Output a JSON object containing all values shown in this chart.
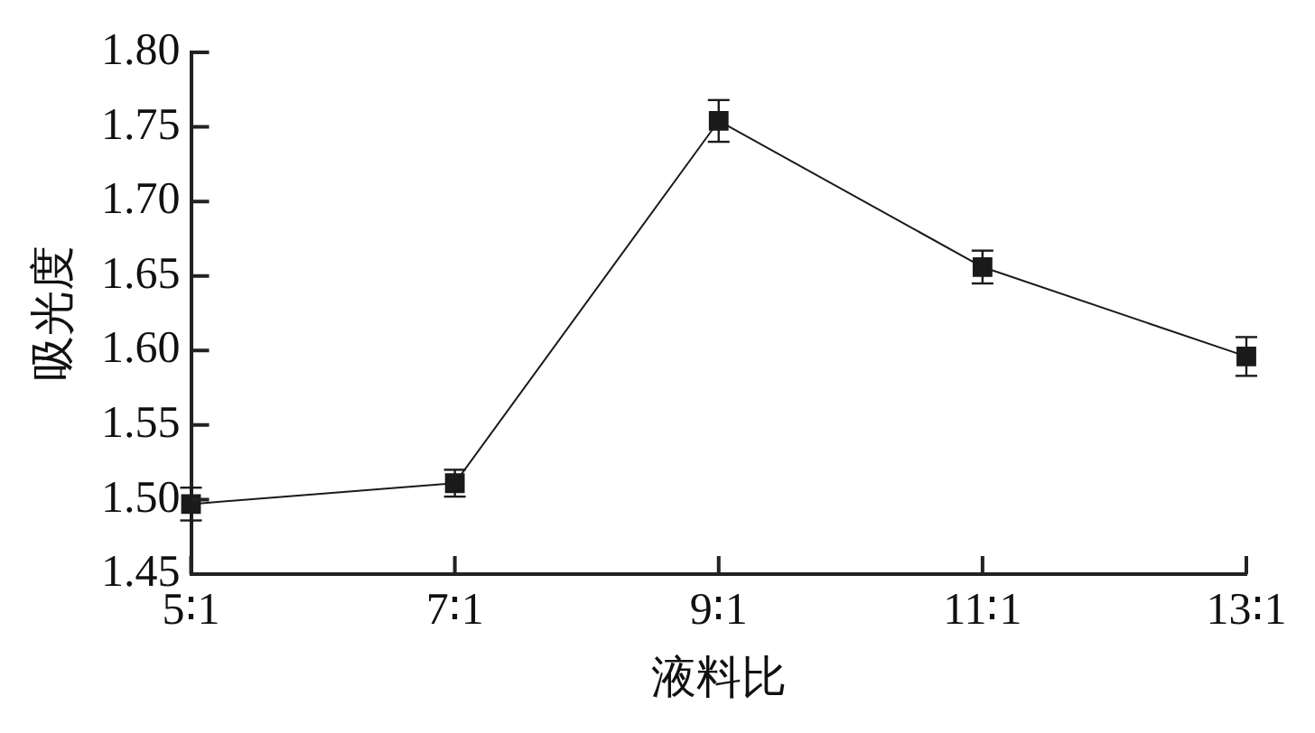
{
  "chart_data": {
    "type": "line",
    "xlabel": "液料比",
    "ylabel": "吸光度",
    "categories": [
      "5∶1",
      "7∶1",
      "9∶1",
      "11∶1",
      "13∶1"
    ],
    "series": [
      {
        "color": "#1a1a1a",
        "values": [
          1.497,
          1.511,
          1.754,
          1.656,
          1.596
        ],
        "errors": [
          0.011,
          0.009,
          0.014,
          0.011,
          0.013
        ]
      }
    ],
    "ylim": [
      1.45,
      1.8
    ],
    "yticks": [
      1.45,
      {
        "value": 1.5,
        "label": "1.50"
      },
      1.55,
      {
        "value": 1.6,
        "label": "1.60"
      },
      1.65,
      {
        "value": 1.7,
        "label": "1.70"
      },
      1.75,
      {
        "value": 1.8,
        "label": "1.80"
      }
    ],
    "marker": "square",
    "line_style": "solid",
    "grid": false,
    "legend": false
  }
}
